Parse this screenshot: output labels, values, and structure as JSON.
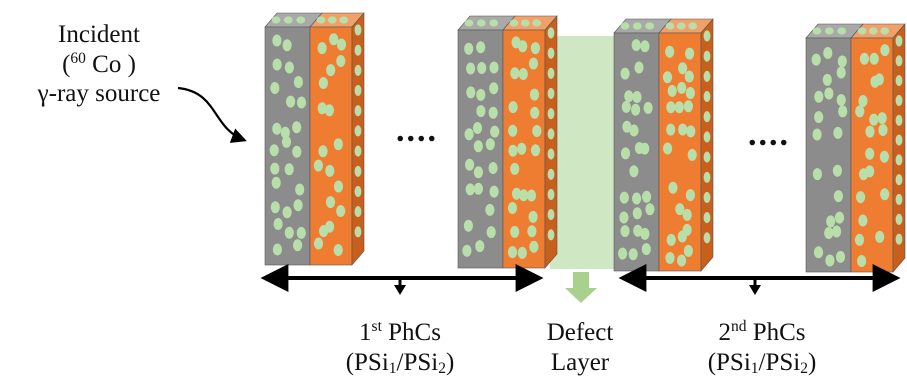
{
  "source_label": {
    "line1": "Incident",
    "line2_open": "(",
    "line2_sup": "60",
    "line2_rest": " Co )",
    "line3": "γ-ray source"
  },
  "ellipsis_left": "....",
  "ellipsis_right": "....",
  "first_phc": {
    "num": "1",
    "suffix": "st",
    "name": " PhCs",
    "formula_open": "(PSi",
    "sub1": "1",
    "formula_mid": "/PSi",
    "sub2": "2",
    "formula_close": ")"
  },
  "defect": {
    "line1": "Defect",
    "line2": "Layer"
  },
  "second_phc": {
    "num": "2",
    "suffix": "nd",
    "name": " PhCs",
    "formula_open": "(PSi",
    "sub1": "1",
    "formula_mid": "/PSi",
    "sub2": "2",
    "formula_close": ")"
  },
  "colors": {
    "gray_face": "#8c8c8c",
    "gray_side": "#6f6f6f",
    "gray_top": "#a9a9a9",
    "orange_face": "#ee7d31",
    "orange_side": "#c85f1c",
    "orange_top": "#f2a06a",
    "pore": "#b8deaa",
    "defect": "#cfe8c3",
    "defect_arrow": "#a9d18e",
    "ink": "#000000"
  }
}
